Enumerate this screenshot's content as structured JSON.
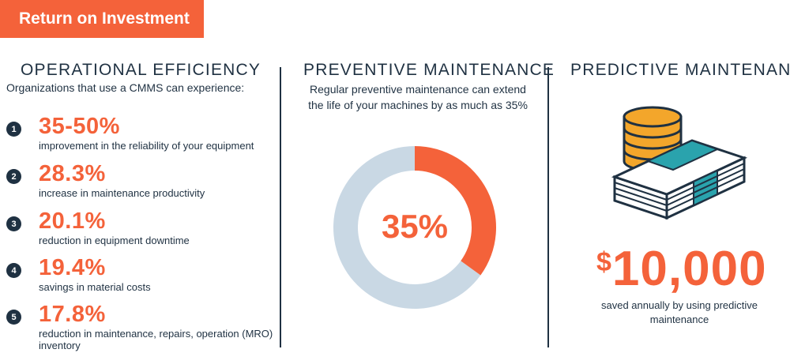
{
  "banner": {
    "title": "Return on Investment"
  },
  "operational": {
    "heading": "OPERATIONAL EFFICIENCY",
    "subheading": "Organizations that use a CMMS can experience:",
    "stats": [
      {
        "number": "1",
        "value": "35-50%",
        "description": "improvement in the reliability of your equipment"
      },
      {
        "number": "2",
        "value": "28.3%",
        "description": "increase in maintenance productivity"
      },
      {
        "number": "3",
        "value": "20.1%",
        "description": "reduction in equipment downtime"
      },
      {
        "number": "4",
        "value": "19.4%",
        "description": "savings in material costs"
      },
      {
        "number": "5",
        "value": "17.8%",
        "description": "reduction in maintenance, repairs, operation (MRO) inventory"
      }
    ]
  },
  "preventive": {
    "heading": "PREVENTIVE MAINTENANCE",
    "description_line1": "Regular preventive maintenance can extend",
    "description_line2": "the life of your machines by as much as 35%",
    "donut_label": "35%",
    "donut_fraction": 0.35,
    "colors": {
      "highlight": "#f4623a",
      "remainder": "#c9d8e4"
    }
  },
  "predictive": {
    "heading": "PREDICTIVE MAINTENANCE",
    "icon": "coins-and-cash-icon",
    "savings_symbol": "$",
    "savings_amount": "10,000",
    "caption_line1": "saved annually by using predictive",
    "caption_line2": "maintenance"
  },
  "colors": {
    "accent": "#f4623a",
    "navy": "#1f3142",
    "teal": "#2aa3ad",
    "gold": "#f3a62b"
  }
}
